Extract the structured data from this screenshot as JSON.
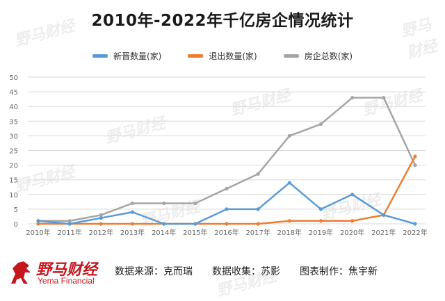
{
  "title": "2010年-2022年千亿房企情况统计",
  "watermark_text": "野马财经",
  "logo": {
    "cn": "野马财经",
    "en": "Yema Financial"
  },
  "credits": {
    "source": "数据来源：克而瑞",
    "collector": "数据收集：苏影",
    "maker": "图表制作：焦宇新"
  },
  "colors": {
    "new": "#5b9bd5",
    "exit": "#ed7d31",
    "total": "#a5a5a5",
    "brand": "#c6161e"
  },
  "chart_data": {
    "type": "line",
    "title": "2010年-2022年千亿房企情况统计",
    "categories": [
      "2010年",
      "2011年",
      "2012年",
      "2013年",
      "2014年",
      "2015年",
      "2016年",
      "2017年",
      "2018年",
      "2019年",
      "2020年",
      "2021年",
      "2022年"
    ],
    "series": [
      {
        "name": "新晋数量(家)",
        "values": [
          1,
          0,
          2,
          4,
          0,
          0,
          5,
          5,
          14,
          5,
          10,
          3,
          0
        ]
      },
      {
        "name": "退出数量(家)",
        "values": [
          0,
          0,
          0,
          0,
          0,
          0,
          0,
          0,
          1,
          1,
          1,
          3,
          23
        ]
      },
      {
        "name": "房企总数(家)",
        "values": [
          1,
          1,
          3,
          7,
          7,
          7,
          12,
          17,
          30,
          34,
          43,
          43,
          20
        ]
      }
    ],
    "yticks": [
      0,
      5,
      10,
      15,
      20,
      25,
      30,
      35,
      40,
      45,
      50
    ],
    "ylim": [
      0,
      50
    ],
    "grid": true,
    "legend_position": "top"
  }
}
